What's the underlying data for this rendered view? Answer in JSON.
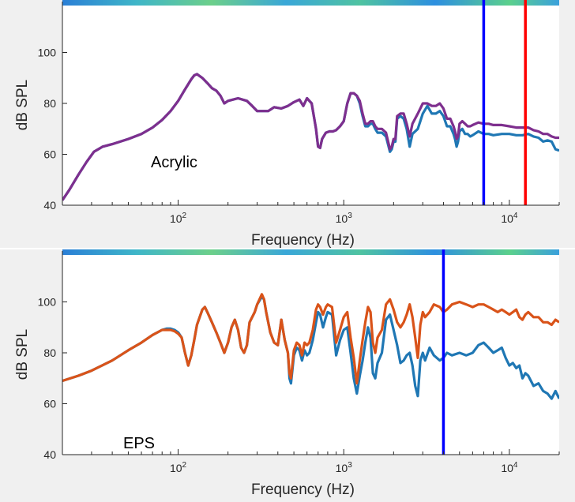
{
  "chart_data": [
    {
      "type": "line",
      "xscale": "log",
      "xlim": [
        20,
        20000
      ],
      "ylim": [
        40,
        120
      ],
      "xlabel": "Frequency (Hz)",
      "ylabel": "dB SPL",
      "xticks": [
        "10^2",
        "10^3",
        "10^4"
      ],
      "yticks": [
        40,
        60,
        80,
        100
      ],
      "annotation": "Acrylic",
      "grid": false,
      "colors": {
        "series_a": "#1f77b4",
        "series_b": "#7e2f8e",
        "marker1": "#0000ff",
        "marker2": "#ff0000"
      },
      "vlines": [
        7000,
        12500
      ],
      "series": [
        {
          "x": [
            20,
            22,
            25,
            28,
            31,
            35,
            40,
            50,
            60,
            70,
            80,
            90,
            100,
            110,
            120,
            125,
            130,
            140,
            150,
            160,
            170,
            180,
            190,
            200,
            230,
            260,
            280,
            300,
            320,
            350,
            380,
            420,
            460,
            500,
            540,
            570,
            600,
            640,
            680,
            700,
            720,
            740,
            780,
            820,
            860,
            900,
            950,
            1000,
            1050,
            1100,
            1150,
            1200,
            1250,
            1300,
            1350,
            1400,
            1450,
            1500,
            1550,
            1600,
            1700,
            1800,
            1900,
            1950,
            2000,
            2050,
            2100,
            2200,
            2300,
            2400,
            2500,
            2600,
            2800,
            3000,
            3200,
            3400,
            3600,
            3800,
            4000,
            4200,
            4400,
            4600,
            4700,
            4800,
            4900,
            5000,
            5200,
            5400,
            5600,
            5800,
            6000,
            6500,
            7000,
            7500,
            8000,
            9000,
            10000,
            11000,
            12000,
            13000,
            14000,
            15000,
            16000,
            17000,
            18000,
            19000,
            20000
          ],
          "values": [
            42,
            46,
            52,
            57,
            61,
            63,
            64,
            66,
            68,
            70.5,
            73.5,
            77,
            81,
            85.5,
            89.5,
            91,
            91.5,
            90,
            88,
            86,
            85,
            83,
            80,
            81,
            82,
            81,
            79,
            77,
            77,
            77,
            78.5,
            78,
            79,
            80.5,
            81.5,
            79,
            82,
            80,
            70,
            63,
            62.5,
            66,
            68.5,
            69,
            69,
            69.5,
            71,
            73,
            80,
            84,
            84,
            83,
            80,
            75,
            71,
            71,
            72,
            72,
            70,
            68.5,
            68.5,
            67,
            61,
            62,
            65,
            65,
            74,
            75,
            74,
            70,
            63,
            68,
            70,
            76,
            79,
            76,
            76,
            77,
            75,
            71,
            71,
            68,
            66,
            63,
            65,
            69,
            70,
            68,
            68,
            67,
            67.5,
            69,
            68,
            68,
            67.5,
            68,
            68,
            67.5,
            67.5,
            68,
            67,
            66.5,
            65,
            65.5,
            65,
            62,
            61.5
          ]
        },
        {
          "x": [
            20,
            22,
            25,
            28,
            31,
            35,
            40,
            50,
            60,
            70,
            80,
            90,
            100,
            110,
            120,
            125,
            130,
            140,
            150,
            160,
            170,
            180,
            190,
            200,
            230,
            260,
            280,
            300,
            320,
            350,
            380,
            420,
            460,
            500,
            540,
            570,
            600,
            640,
            680,
            700,
            720,
            740,
            780,
            820,
            860,
            900,
            950,
            1000,
            1050,
            1100,
            1150,
            1200,
            1250,
            1300,
            1350,
            1400,
            1450,
            1500,
            1550,
            1600,
            1700,
            1800,
            1900,
            1950,
            2000,
            2050,
            2100,
            2200,
            2300,
            2400,
            2500,
            2600,
            2800,
            3000,
            3200,
            3400,
            3600,
            3800,
            4000,
            4200,
            4400,
            4600,
            4700,
            4800,
            4900,
            5000,
            5200,
            5400,
            5600,
            5800,
            6000,
            6500,
            7000,
            7500,
            8000,
            9000,
            10000,
            11000,
            12000,
            13000,
            14000,
            15000,
            16000,
            17000,
            18000,
            19000,
            20000
          ],
          "values": [
            42,
            46,
            52,
            57,
            61,
            63,
            64,
            66,
            68,
            70.5,
            73.5,
            77,
            81,
            85.5,
            89.5,
            91,
            91.5,
            90,
            88,
            86,
            85,
            83,
            80,
            81,
            82,
            81,
            79,
            77,
            77,
            77,
            78.5,
            78,
            79,
            80.5,
            81.5,
            79,
            82,
            80,
            70,
            63,
            62.5,
            66,
            68.5,
            69,
            69,
            69.5,
            71,
            73,
            80,
            84,
            84,
            83,
            81,
            76,
            72,
            72,
            73,
            73,
            71,
            70,
            70,
            68.5,
            62,
            63,
            66,
            66,
            75,
            76,
            76,
            72,
            67,
            72,
            76,
            80,
            80,
            79,
            79,
            80,
            78,
            74,
            74,
            71,
            69,
            66,
            67,
            72,
            73,
            72,
            71,
            71,
            71.5,
            72.5,
            72,
            72,
            71.5,
            71.5,
            71,
            70.5,
            70.5,
            70.5,
            69.5,
            69,
            68,
            68,
            67,
            66.5,
            66.5
          ]
        }
      ]
    },
    {
      "type": "line",
      "xscale": "log",
      "xlim": [
        20,
        20000
      ],
      "ylim": [
        40,
        120
      ],
      "xlabel": "Frequency (Hz)",
      "ylabel": "dB SPL",
      "xticks": [
        "10^2",
        "10^3",
        "10^4"
      ],
      "yticks": [
        40,
        60,
        80,
        100
      ],
      "annotation": "EPS",
      "grid": false,
      "colors": {
        "series_a": "#1f77b4",
        "series_b": "#d95319",
        "marker1": "#0000ff"
      },
      "vlines": [
        4000
      ],
      "series": [
        {
          "x": [
            20,
            25,
            30,
            40,
            50,
            60,
            70,
            80,
            85,
            90,
            95,
            100,
            105,
            110,
            115,
            120,
            125,
            130,
            140,
            145,
            150,
            160,
            170,
            180,
            190,
            200,
            210,
            220,
            230,
            240,
            250,
            260,
            270,
            290,
            300,
            320,
            330,
            340,
            360,
            380,
            400,
            420,
            440,
            460,
            470,
            480,
            500,
            520,
            540,
            560,
            580,
            600,
            620,
            650,
            680,
            700,
            720,
            750,
            780,
            800,
            850,
            900,
            950,
            1000,
            1050,
            1100,
            1150,
            1200,
            1250,
            1300,
            1350,
            1400,
            1450,
            1500,
            1550,
            1600,
            1700,
            1800,
            1900,
            2000,
            2100,
            2200,
            2300,
            2400,
            2500,
            2600,
            2700,
            2800,
            2900,
            3000,
            3100,
            3300,
            3500,
            3800,
            4000,
            4200,
            4500,
            5000,
            5500,
            6000,
            6500,
            7000,
            7500,
            8000,
            8500,
            9000,
            9500,
            10000,
            10500,
            11000,
            11500,
            12000,
            12500,
            13000,
            14000,
            15000,
            16000,
            17000,
            18000,
            19000,
            20000
          ],
          "values": [
            69,
            71,
            73,
            77,
            81,
            84,
            87,
            89,
            89.5,
            89.5,
            89,
            88,
            86,
            80,
            75,
            79,
            85,
            91,
            97,
            98,
            96,
            92,
            88,
            84,
            80,
            84,
            90,
            93,
            89,
            82,
            80,
            83,
            92,
            96,
            99,
            102,
            101,
            96,
            88,
            84,
            83,
            93,
            85,
            80,
            70,
            68,
            79,
            82,
            81,
            77,
            81,
            79,
            80,
            85,
            92,
            96,
            95,
            90,
            94,
            96,
            95,
            79,
            85,
            89,
            90,
            80,
            70,
            64,
            71,
            77,
            84,
            90,
            86,
            72,
            70,
            76,
            80,
            93,
            95,
            89,
            83,
            76,
            77,
            79,
            80,
            75,
            67,
            63,
            77,
            80,
            77,
            82,
            79,
            77,
            78,
            80,
            79,
            80,
            79,
            80,
            83,
            84,
            82,
            80,
            81,
            82,
            78,
            75,
            76,
            74,
            75,
            70,
            72,
            71,
            67,
            68,
            65,
            64,
            62,
            65,
            62
          ]
        },
        {
          "x": [
            20,
            25,
            30,
            40,
            50,
            60,
            70,
            80,
            85,
            90,
            95,
            100,
            105,
            110,
            115,
            120,
            125,
            130,
            140,
            145,
            150,
            160,
            170,
            180,
            190,
            200,
            210,
            220,
            230,
            240,
            250,
            260,
            270,
            290,
            300,
            320,
            330,
            340,
            360,
            380,
            400,
            420,
            440,
            460,
            470,
            480,
            500,
            520,
            540,
            560,
            580,
            600,
            620,
            650,
            680,
            700,
            720,
            750,
            780,
            800,
            850,
            900,
            950,
            1000,
            1050,
            1100,
            1150,
            1200,
            1250,
            1300,
            1350,
            1400,
            1450,
            1500,
            1550,
            1600,
            1700,
            1800,
            1900,
            2000,
            2100,
            2200,
            2300,
            2400,
            2500,
            2600,
            2700,
            2800,
            2900,
            3000,
            3100,
            3300,
            3500,
            3800,
            4000,
            4200,
            4500,
            5000,
            5500,
            6000,
            6500,
            7000,
            7500,
            8000,
            8500,
            9000,
            9500,
            10000,
            10500,
            11000,
            11500,
            12000,
            12500,
            13000,
            14000,
            15000,
            16000,
            17000,
            18000,
            19000,
            20000
          ],
          "values": [
            69,
            71,
            73,
            77,
            81,
            84,
            87,
            89,
            89,
            89,
            88.5,
            87.5,
            86,
            80,
            75,
            79,
            85,
            91,
            97,
            98,
            96,
            92,
            88,
            84,
            80,
            84,
            90,
            93,
            89,
            82,
            80,
            83,
            92,
            96,
            99,
            103,
            101,
            96,
            88,
            84,
            83,
            93,
            85,
            80,
            72,
            70,
            81,
            84,
            83,
            79,
            84,
            83,
            84,
            89,
            97,
            99,
            98,
            95,
            98,
            99,
            98,
            84,
            89,
            94,
            96,
            86,
            78,
            68,
            77,
            85,
            92,
            98,
            96,
            84,
            80,
            86,
            89,
            99,
            101,
            97,
            92,
            90,
            92,
            95,
            99,
            94,
            86,
            78,
            91,
            96,
            94,
            96,
            99,
            98,
            96,
            97,
            99,
            100,
            99,
            98,
            99,
            99,
            98,
            97,
            96,
            97,
            96,
            95,
            96,
            97,
            94,
            93,
            95,
            96,
            94,
            94,
            92,
            92,
            91,
            93,
            92
          ]
        }
      ]
    }
  ]
}
